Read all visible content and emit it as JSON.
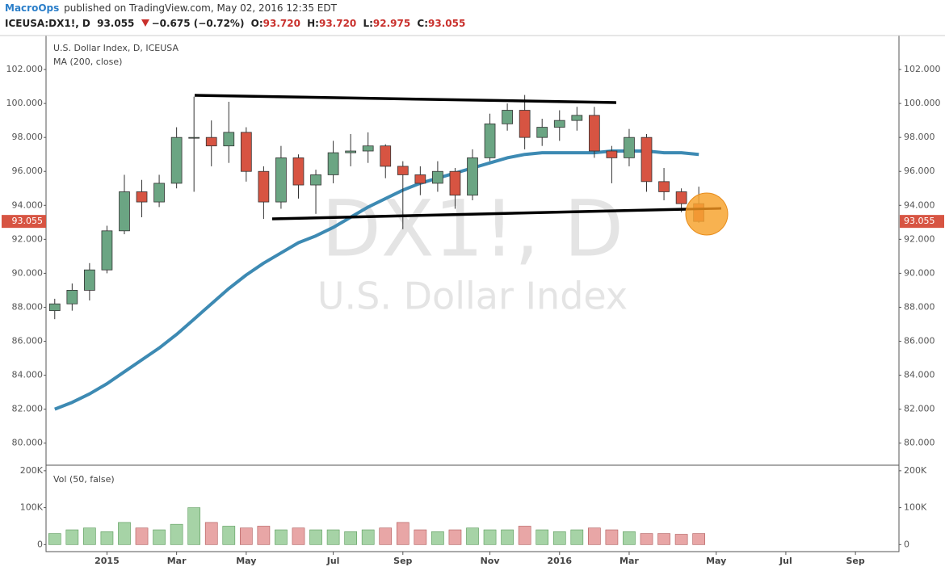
{
  "header": {
    "author": "MacroOps",
    "published": "published on TradingView.com, May 02, 2016 12:35 EDT",
    "symbol": "ICEUSA:DX1!, D",
    "price": "93.055",
    "change": "−0.675 (−0.72%)",
    "open_label": "O:",
    "open": "93.720",
    "high_label": "H:",
    "high": "93.720",
    "low_label": "L:",
    "low": "92.975",
    "close_label": "C:",
    "close": "93.055"
  },
  "chart_data": {
    "type": "candlestick",
    "title": "U.S. Dollar Index, D, ICEUSA",
    "watermark": "DX1!, D",
    "watermark_subtitle": "U.S. Dollar Index",
    "last_price": {
      "value": 93.055,
      "label": "93.055"
    },
    "up_color": "#6ba583",
    "down_color": "#d75442",
    "categories": [
      null,
      null,
      null,
      "2015",
      null,
      null,
      null,
      "Mar",
      null,
      null,
      null,
      "May",
      null,
      null,
      null,
      null,
      "Jul",
      null,
      null,
      null,
      "Sep",
      null,
      null,
      null,
      null,
      "Nov",
      null,
      null,
      null,
      "2016",
      null,
      null,
      null,
      "Mar",
      null,
      null,
      null,
      null,
      "May",
      null,
      null,
      null,
      "Jul",
      null,
      null,
      null,
      "Sep",
      null,
      null
    ],
    "open": [
      87.8,
      88.2,
      89.0,
      90.2,
      92.5,
      94.8,
      94.2,
      95.3,
      98.0,
      98.0,
      97.5,
      98.3,
      96.0,
      94.2,
      96.8,
      95.2,
      95.8,
      97.1,
      97.2,
      97.5,
      96.3,
      95.8,
      95.3,
      96.0,
      94.6,
      96.8,
      98.8,
      99.6,
      98.0,
      98.6,
      99.0,
      99.3,
      97.2,
      96.8,
      98.0,
      95.4,
      94.8,
      94.1,
      null,
      null,
      null,
      null,
      null,
      null,
      null,
      null,
      null,
      null,
      null
    ],
    "high": [
      88.5,
      89.4,
      90.6,
      92.8,
      95.8,
      95.5,
      95.8,
      98.6,
      100.4,
      99.0,
      100.1,
      98.6,
      96.3,
      97.5,
      97.0,
      96.1,
      97.8,
      98.2,
      98.3,
      97.6,
      96.6,
      96.3,
      96.6,
      96.2,
      97.3,
      99.4,
      100.0,
      100.5,
      99.1,
      99.6,
      99.8,
      99.8,
      97.5,
      98.5,
      98.2,
      96.2,
      95.0,
      95.1,
      null,
      null,
      null,
      null,
      null,
      null,
      null,
      null,
      null,
      null,
      null
    ],
    "low": [
      87.3,
      87.8,
      88.4,
      90.0,
      92.3,
      93.3,
      93.9,
      95.0,
      94.8,
      96.3,
      96.5,
      95.4,
      93.2,
      93.8,
      94.4,
      93.5,
      95.3,
      96.3,
      96.5,
      95.6,
      92.6,
      94.6,
      94.8,
      93.8,
      94.3,
      96.6,
      98.4,
      97.3,
      97.5,
      97.8,
      98.4,
      96.8,
      95.3,
      96.3,
      94.8,
      94.3,
      93.6,
      92.975,
      null,
      null,
      null,
      null,
      null,
      null,
      null,
      null,
      null,
      null,
      null
    ],
    "close": [
      88.2,
      89.0,
      90.2,
      92.5,
      94.8,
      94.2,
      95.3,
      98.0,
      98.0,
      97.5,
      98.3,
      96.0,
      94.2,
      96.8,
      95.2,
      95.8,
      97.1,
      97.2,
      97.5,
      96.3,
      95.8,
      95.3,
      96.0,
      94.6,
      96.8,
      98.8,
      99.6,
      98.0,
      98.6,
      99.0,
      99.3,
      97.2,
      96.8,
      98.0,
      95.4,
      94.8,
      94.1,
      93.055,
      null,
      null,
      null,
      null,
      null,
      null,
      null,
      null,
      null,
      null,
      null
    ],
    "ma": {
      "name": "MA (200, close)",
      "color": "#3d8ab3",
      "values": [
        82.0,
        82.4,
        82.9,
        83.5,
        84.2,
        84.9,
        85.6,
        86.4,
        87.3,
        88.2,
        89.1,
        89.9,
        90.6,
        91.2,
        91.8,
        92.2,
        92.7,
        93.3,
        93.9,
        94.4,
        94.9,
        95.3,
        95.6,
        95.9,
        96.2,
        96.5,
        96.8,
        97.0,
        97.1,
        97.1,
        97.1,
        97.1,
        97.2,
        97.2,
        97.2,
        97.1,
        97.1,
        97.0,
        null,
        null,
        null,
        null,
        null,
        null,
        null,
        null,
        null,
        null,
        null
      ]
    },
    "ylim": [
      78.7,
      104
    ],
    "yticks": [
      {
        "value": 80,
        "label": "80.000"
      },
      {
        "value": 82,
        "label": "82.000"
      },
      {
        "value": 84,
        "label": "84.000"
      },
      {
        "value": 86,
        "label": "86.000"
      },
      {
        "value": 88,
        "label": "88.000"
      },
      {
        "value": 90,
        "label": "90.000"
      },
      {
        "value": 92,
        "label": "92.000"
      },
      {
        "value": 94,
        "label": "94.000"
      },
      {
        "value": 96,
        "label": "96.000"
      },
      {
        "value": 98,
        "label": "98.000"
      },
      {
        "value": 100,
        "label": "100.000"
      },
      {
        "value": 102,
        "label": "102.000"
      }
    ],
    "volume": {
      "name": "Vol (50, false)",
      "up_color": "#a6d3a6",
      "down_color": "#e8a6a6",
      "values": [
        30000,
        40000,
        45000,
        35000,
        60000,
        45000,
        40000,
        55000,
        100000,
        60000,
        50000,
        45000,
        50000,
        40000,
        45000,
        40000,
        40000,
        35000,
        40000,
        45000,
        60000,
        40000,
        35000,
        40000,
        45000,
        40000,
        40000,
        50000,
        40000,
        35000,
        40000,
        45000,
        40000,
        35000,
        30000,
        30000,
        28000,
        30000,
        null,
        null,
        null,
        null,
        null,
        null,
        null,
        null,
        null,
        null,
        null
      ],
      "ylim": [
        -19000,
        215000
      ],
      "yticks": [
        0,
        {
          "value": 100000,
          "label": "100K"
        },
        {
          "value": 200000,
          "label": "200K"
        }
      ]
    }
  }
}
